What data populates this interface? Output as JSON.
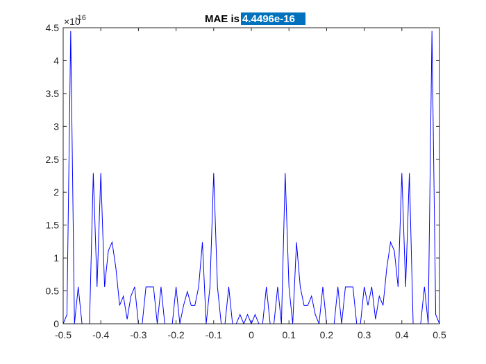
{
  "chart_data": {
    "type": "line",
    "title_prefix": "MAE is",
    "title_highlight": "4.4496e-16",
    "xlabel": "",
    "ylabel": "",
    "xlim": [
      -0.5,
      0.5
    ],
    "ylim": [
      0,
      4.5
    ],
    "y_exponent_label": "×10",
    "y_exponent_power": "-16",
    "x_ticks": [
      "-0.5",
      "-0.4",
      "-0.3",
      "-0.2",
      "-0.1",
      "0",
      "0.1",
      "0.2",
      "0.3",
      "0.4",
      "0.5"
    ],
    "y_ticks": [
      "0",
      "0.5",
      "1",
      "1.5",
      "2",
      "2.5",
      "3",
      "3.5",
      "4",
      "4.5"
    ],
    "x_tick_values": [
      -0.5,
      -0.4,
      -0.3,
      -0.2,
      -0.1,
      0,
      0.1,
      0.2,
      0.3,
      0.4,
      0.5
    ],
    "y_tick_values": [
      0,
      0.5,
      1,
      1.5,
      2,
      2.5,
      3,
      3.5,
      4,
      4.5
    ],
    "grid": false,
    "legend": "none",
    "line_color": "#0000ff",
    "highlight_color": "#0072bd",
    "series": [
      {
        "x": [
          -0.5,
          -0.49,
          -0.48,
          -0.47,
          -0.46,
          -0.45,
          -0.44,
          -0.43,
          -0.42,
          -0.41,
          -0.4,
          -0.39,
          -0.38,
          -0.37,
          -0.36,
          -0.35,
          -0.34,
          -0.33,
          -0.32,
          -0.31,
          -0.3,
          -0.29,
          -0.28,
          -0.27,
          -0.26,
          -0.25,
          -0.24,
          -0.23,
          -0.22,
          -0.21,
          -0.2,
          -0.19,
          -0.18,
          -0.17,
          -0.16,
          -0.15,
          -0.14,
          -0.13,
          -0.12,
          -0.11,
          -0.1,
          -0.09,
          -0.08,
          -0.07,
          -0.06,
          -0.05,
          -0.04,
          -0.03,
          -0.02,
          -0.01,
          0,
          0.01,
          0.02,
          0.03,
          0.04,
          0.05,
          0.06,
          0.07,
          0.08,
          0.09,
          0.1,
          0.11,
          0.12,
          0.13,
          0.14,
          0.15,
          0.16,
          0.17,
          0.18,
          0.19,
          0.2,
          0.21,
          0.22,
          0.23,
          0.24,
          0.25,
          0.26,
          0.27,
          0.28,
          0.29,
          0.3,
          0.31,
          0.32,
          0.33,
          0.34,
          0.35,
          0.36,
          0.37,
          0.38,
          0.39,
          0.4,
          0.41,
          0.42,
          0.43,
          0.44,
          0.45,
          0.46,
          0.47,
          0.48,
          0.49,
          0.5
        ],
        "y": [
          0,
          0.14,
          4.45,
          0,
          0.56,
          0,
          0,
          0,
          2.29,
          0.56,
          2.29,
          0.56,
          1.11,
          1.24,
          0.85,
          0.28,
          0.42,
          0.07,
          0.42,
          0.56,
          0,
          0,
          0.56,
          0.56,
          0.56,
          0,
          0.56,
          0,
          0,
          0,
          0.56,
          0,
          0.28,
          0.49,
          0.28,
          0.28,
          0.56,
          1.24,
          0,
          0.56,
          2.29,
          0.56,
          0,
          0,
          0.56,
          0,
          0,
          0.14,
          0,
          0.14,
          0,
          0.14,
          0,
          0,
          0.56,
          0,
          0,
          0.56,
          0,
          2.29,
          0.56,
          0,
          1.24,
          0.56,
          0.28,
          0.28,
          0.42,
          0.14,
          0,
          0.56,
          0,
          0,
          0,
          0.56,
          0,
          0.56,
          0.56,
          0.56,
          0,
          0,
          0.56,
          0.28,
          0.56,
          0.07,
          0.42,
          0.28,
          0.85,
          1.24,
          1.11,
          0.56,
          2.29,
          0.56,
          2.29,
          0,
          0,
          0,
          0.56,
          0,
          4.45,
          0.14,
          0
        ]
      }
    ]
  }
}
